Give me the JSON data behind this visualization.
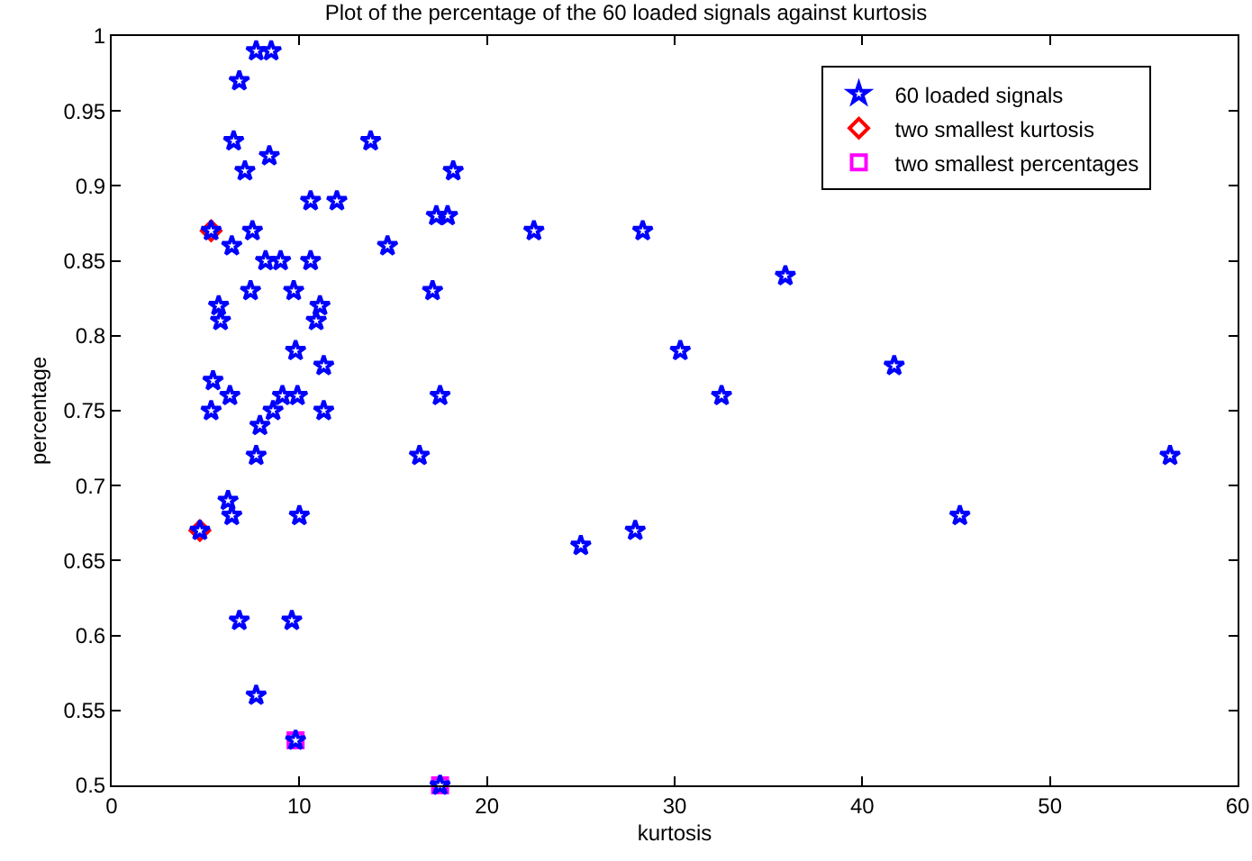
{
  "chart_data": {
    "type": "scatter",
    "title": "Plot of the percentage of the 60 loaded signals against kurtosis",
    "xlabel": "kurtosis",
    "ylabel": "percentage",
    "xlim": [
      0,
      60
    ],
    "xticks": [
      0,
      10,
      20,
      30,
      40,
      50,
      60
    ],
    "ylim": [
      0.5,
      1
    ],
    "yticks": [
      0.5,
      0.55,
      0.6,
      0.65,
      0.7,
      0.75,
      0.8,
      0.85,
      0.9,
      0.95,
      1
    ],
    "grid": false,
    "legend": "top right",
    "series": [
      {
        "name": "60 loaded signals",
        "color": "#0000ff",
        "marker": "star",
        "x": [
          7.7,
          8.5,
          6.8,
          6.5,
          13.8,
          8.4,
          7.1,
          18.2,
          10.6,
          12.0,
          17.3,
          17.9,
          5.3,
          7.5,
          22.5,
          28.3,
          6.4,
          14.7,
          8.2,
          9.0,
          10.6,
          35.9,
          7.4,
          9.7,
          17.1,
          5.7,
          11.1,
          5.8,
          10.9,
          9.8,
          30.3,
          11.3,
          41.7,
          5.4,
          6.3,
          9.1,
          9.9,
          17.5,
          32.5,
          5.3,
          8.6,
          11.3,
          7.9,
          7.7,
          16.4,
          56.4,
          6.2,
          6.4,
          10.0,
          45.2,
          4.7,
          27.9,
          25.0,
          6.8,
          9.6,
          7.7,
          9.8,
          17.5
        ],
        "values": [
          0.99,
          0.99,
          0.97,
          0.93,
          0.93,
          0.92,
          0.91,
          0.91,
          0.89,
          0.89,
          0.88,
          0.88,
          0.87,
          0.87,
          0.87,
          0.87,
          0.86,
          0.86,
          0.85,
          0.85,
          0.85,
          0.84,
          0.83,
          0.83,
          0.83,
          0.82,
          0.82,
          0.81,
          0.81,
          0.79,
          0.79,
          0.78,
          0.78,
          0.77,
          0.76,
          0.76,
          0.76,
          0.76,
          0.76,
          0.75,
          0.75,
          0.75,
          0.74,
          0.72,
          0.72,
          0.72,
          0.69,
          0.68,
          0.68,
          0.68,
          0.67,
          0.67,
          0.66,
          0.61,
          0.61,
          0.56,
          0.53,
          0.5
        ]
      },
      {
        "name": "two smallest kurtosis",
        "color": "#ff0000",
        "marker": "diamond",
        "x": [
          5.3,
          4.7
        ],
        "values": [
          0.87,
          0.67
        ]
      },
      {
        "name": "two smallest percentages",
        "color": "#ff00ff",
        "marker": "square",
        "x": [
          9.8,
          17.5
        ],
        "values": [
          0.53,
          0.5
        ]
      }
    ]
  }
}
